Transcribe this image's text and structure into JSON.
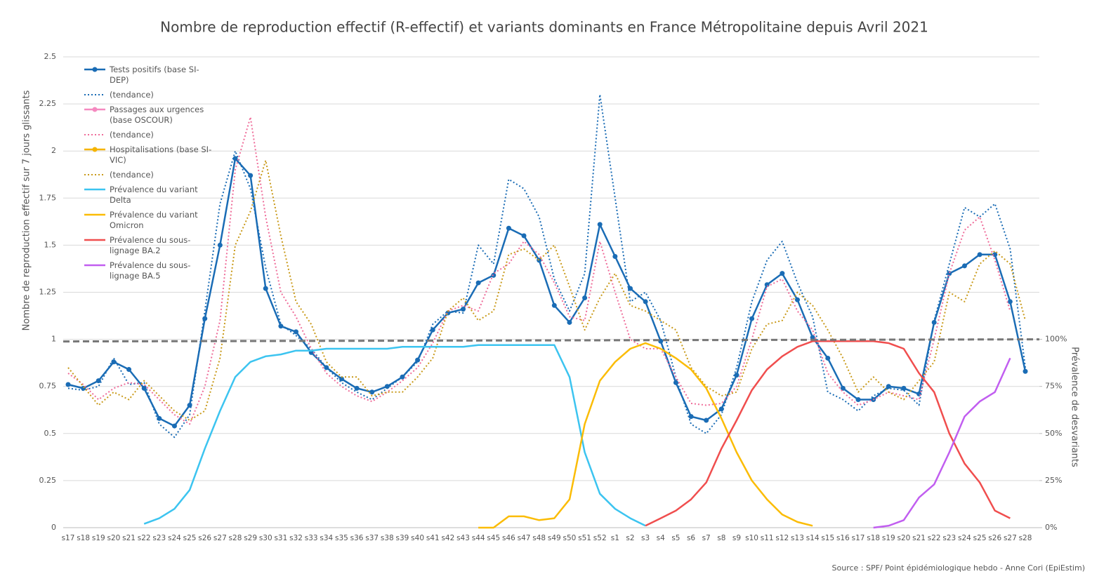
{
  "chart_data": {
    "type": "line",
    "title": "Nombre de reproduction effectif (R-effectif) et variants dominants en France Métropolitaine depuis Avril 2021",
    "y_label": "Nombre de reproduction effectif sur 7 jours glissants",
    "y2_label": "Prévalence de desvariants",
    "source": "Source : SPF/ Point épidémiologique hebdo - Anne Cori (EpiEstim)",
    "categories": [
      "s17",
      "s18",
      "s19",
      "s20",
      "s21",
      "s22",
      "s23",
      "s24",
      "s25",
      "s26",
      "s27",
      "s28",
      "s29",
      "s30",
      "s31",
      "s32",
      "s33",
      "s34",
      "s35",
      "s36",
      "s37",
      "s38",
      "s39",
      "s40",
      "s41",
      "s42",
      "s43",
      "s44",
      "s45",
      "s46",
      "s47",
      "s48",
      "s49",
      "s50",
      "s51",
      "s52",
      "s1",
      "s2",
      "s3",
      "s4",
      "s5",
      "s6",
      "s7",
      "s8",
      "s9",
      "s10",
      "s11",
      "s12",
      "s13",
      "s14",
      "s15",
      "s16",
      "s17",
      "s18",
      "s19",
      "s20",
      "s21",
      "s22",
      "s23",
      "s24",
      "s25",
      "s26",
      "s27",
      "s28"
    ],
    "ylim": [
      0,
      2.5
    ],
    "yticks": [
      0,
      0.25,
      0.5,
      0.75,
      1,
      1.25,
      1.5,
      1.75,
      2,
      2.25,
      2.5
    ],
    "y2lim": [
      0,
      250
    ],
    "y2ticks": [
      {
        "value": 0,
        "label": "0%"
      },
      {
        "value": 25,
        "label": "25%"
      },
      {
        "value": 50,
        "label": "50%"
      },
      {
        "value": 75,
        "label": "75%"
      },
      {
        "value": 100,
        "label": "100%"
      }
    ],
    "grid": true,
    "reference_line": 1,
    "series": [
      {
        "name": "Tests positifs (base SI-DEP)",
        "color": "#1a6cb5",
        "style": "solid-marker",
        "values": [
          0.76,
          0.74,
          0.78,
          0.88,
          0.84,
          0.74,
          0.58,
          0.54,
          0.65,
          1.11,
          1.5,
          1.96,
          1.87,
          1.27,
          1.07,
          1.04,
          0.93,
          0.85,
          0.79,
          0.74,
          0.72,
          0.75,
          0.8,
          0.89,
          1.05,
          1.14,
          1.16,
          1.3,
          1.34,
          1.59,
          1.55,
          1.42,
          1.18,
          1.09,
          1.22,
          1.61,
          1.44,
          1.27,
          1.2,
          0.99,
          0.77,
          0.59,
          0.57,
          0.63,
          0.81,
          1.11,
          1.29,
          1.35,
          1.21,
          1.01,
          0.9,
          0.74,
          0.68,
          0.68,
          0.75,
          0.74,
          0.71,
          1.09,
          1.35,
          1.39,
          1.45,
          1.45,
          1.2,
          0.83
        ]
      },
      {
        "name": "(tendance)",
        "color": "#1a6cb5",
        "style": "dotted",
        "values": [
          0.74,
          0.73,
          0.75,
          0.9,
          0.76,
          0.77,
          0.55,
          0.48,
          0.6,
          1.15,
          1.72,
          2.0,
          1.8,
          1.38,
          1.08,
          1.02,
          0.95,
          0.85,
          0.77,
          0.72,
          0.68,
          0.74,
          0.8,
          0.88,
          1.08,
          1.15,
          1.14,
          1.5,
          1.4,
          1.85,
          1.8,
          1.65,
          1.32,
          1.15,
          1.35,
          2.3,
          1.75,
          1.2,
          1.25,
          1.1,
          0.8,
          0.55,
          0.5,
          0.6,
          0.85,
          1.2,
          1.42,
          1.52,
          1.3,
          1.12,
          0.72,
          0.68,
          0.62,
          0.7,
          0.74,
          0.73,
          0.65,
          1.1,
          1.4,
          1.7,
          1.65,
          1.72,
          1.48,
          0.85
        ]
      },
      {
        "name": "Passages aux urgences (base OSCOUR)",
        "color": "#f58ac0",
        "style": "solid-marker",
        "values": [
          null,
          null,
          null,
          null,
          null,
          null,
          null,
          null,
          null,
          null,
          null,
          null,
          null,
          null,
          null,
          null,
          null,
          null,
          null,
          null,
          null,
          null,
          null,
          null,
          null,
          null,
          null,
          null,
          null,
          null,
          null,
          null,
          null,
          null,
          null,
          null,
          null,
          null,
          null,
          null,
          null,
          null,
          null,
          null,
          null,
          null,
          null,
          null,
          null,
          null,
          null,
          null,
          null,
          null,
          null,
          null,
          null,
          null,
          null,
          null,
          null,
          null,
          null,
          null
        ]
      },
      {
        "name": "(tendance)",
        "color": "#ef6d9a",
        "style": "dotted",
        "values": [
          0.82,
          0.76,
          0.68,
          0.74,
          0.77,
          0.76,
          0.68,
          0.6,
          0.55,
          0.75,
          1.1,
          1.9,
          2.18,
          1.65,
          1.25,
          1.12,
          0.95,
          0.82,
          0.75,
          0.7,
          0.67,
          0.72,
          0.78,
          0.85,
          0.98,
          1.15,
          1.18,
          1.15,
          1.35,
          1.4,
          1.52,
          1.45,
          1.3,
          1.12,
          1.1,
          1.52,
          1.25,
          1.0,
          0.95,
          0.95,
          0.8,
          0.66,
          0.65,
          0.66,
          0.75,
          1.0,
          1.28,
          1.32,
          1.15,
          1.05,
          0.82,
          0.72,
          0.65,
          0.68,
          0.72,
          0.7,
          0.68,
          1.0,
          1.35,
          1.58,
          1.65,
          1.42,
          1.15,
          null
        ]
      },
      {
        "name": "Hospitalisations (base SI-VIC)",
        "color": "#f5b400",
        "style": "solid-marker",
        "values": [
          null,
          null,
          null,
          null,
          null,
          null,
          null,
          null,
          null,
          null,
          null,
          null,
          null,
          null,
          null,
          null,
          null,
          null,
          null,
          null,
          null,
          null,
          null,
          null,
          null,
          null,
          null,
          null,
          null,
          null,
          null,
          null,
          null,
          null,
          null,
          null,
          null,
          null,
          null,
          null,
          null,
          null,
          null,
          null,
          null,
          null,
          null,
          null,
          null,
          null,
          null,
          null,
          null,
          null,
          null,
          null,
          null,
          null,
          null,
          null,
          null,
          null,
          null,
          null
        ]
      },
      {
        "name": "(tendance)",
        "color": "#c99a1a",
        "style": "dotted",
        "values": [
          0.85,
          0.75,
          0.65,
          0.72,
          0.68,
          0.78,
          0.7,
          0.62,
          0.57,
          0.62,
          0.9,
          1.5,
          1.68,
          1.95,
          1.55,
          1.2,
          1.08,
          0.88,
          0.8,
          0.8,
          0.7,
          0.72,
          0.72,
          0.8,
          0.9,
          1.15,
          1.22,
          1.1,
          1.15,
          1.45,
          1.48,
          1.42,
          1.5,
          1.28,
          1.05,
          1.22,
          1.35,
          1.18,
          1.15,
          1.1,
          1.05,
          0.85,
          0.75,
          0.7,
          0.72,
          0.95,
          1.08,
          1.1,
          1.25,
          1.18,
          1.05,
          0.9,
          0.72,
          0.8,
          0.72,
          0.68,
          0.78,
          0.88,
          1.25,
          1.2,
          1.4,
          1.47,
          1.4,
          1.1
        ]
      },
      {
        "name": "Prévalence du variant Delta",
        "color": "#3cc4f0",
        "style": "solid",
        "axis": "y2",
        "values": [
          null,
          null,
          null,
          null,
          null,
          2,
          5,
          10,
          20,
          42,
          62,
          80,
          88,
          91,
          92,
          94,
          94,
          95,
          95,
          95,
          95,
          95,
          96,
          96,
          96,
          96,
          96,
          97,
          97,
          97,
          97,
          97,
          97,
          80,
          40,
          18,
          10,
          5,
          1,
          null,
          null,
          null,
          null,
          null,
          null,
          null,
          null,
          null,
          null,
          null,
          null,
          null,
          null,
          null,
          null,
          null,
          null,
          null,
          null,
          null,
          null,
          null,
          null,
          null
        ]
      },
      {
        "name": "Prévalence du variant Omicron",
        "color": "#fbbc05",
        "style": "solid",
        "axis": "y2",
        "values": [
          null,
          null,
          null,
          null,
          null,
          null,
          null,
          null,
          null,
          null,
          null,
          null,
          null,
          null,
          null,
          null,
          null,
          null,
          null,
          null,
          null,
          null,
          null,
          null,
          null,
          null,
          null,
          0,
          0,
          6,
          6,
          4,
          5,
          15,
          55,
          78,
          88,
          95,
          98,
          95,
          90,
          84,
          74,
          58,
          40,
          25,
          15,
          7,
          3,
          1,
          null,
          null,
          null,
          null,
          null,
          null,
          null,
          null,
          null,
          null,
          null,
          null,
          null,
          null
        ]
      },
      {
        "name": "Prévalence du sous-lignage BA.2",
        "color": "#f04e4e",
        "style": "solid",
        "axis": "y2",
        "values": [
          null,
          null,
          null,
          null,
          null,
          null,
          null,
          null,
          null,
          null,
          null,
          null,
          null,
          null,
          null,
          null,
          null,
          null,
          null,
          null,
          null,
          null,
          null,
          null,
          null,
          null,
          null,
          null,
          null,
          null,
          null,
          null,
          null,
          null,
          null,
          null,
          null,
          null,
          1,
          5,
          9,
          15,
          24,
          42,
          57,
          73,
          84,
          91,
          96,
          99,
          99,
          99,
          99,
          99,
          98,
          95,
          82,
          72,
          50,
          34,
          24,
          9,
          5,
          null
        ]
      },
      {
        "name": "Prévalence du sous-lignage BA.5",
        "color": "#c15ef0",
        "style": "solid",
        "axis": "y2",
        "values": [
          null,
          null,
          null,
          null,
          null,
          null,
          null,
          null,
          null,
          null,
          null,
          null,
          null,
          null,
          null,
          null,
          null,
          null,
          null,
          null,
          null,
          null,
          null,
          null,
          null,
          null,
          null,
          null,
          null,
          null,
          null,
          null,
          null,
          null,
          null,
          null,
          null,
          null,
          null,
          null,
          null,
          null,
          null,
          null,
          null,
          null,
          null,
          null,
          null,
          null,
          null,
          null,
          null,
          0,
          1,
          4,
          16,
          23,
          40,
          59,
          67,
          72,
          90,
          null
        ]
      }
    ]
  }
}
